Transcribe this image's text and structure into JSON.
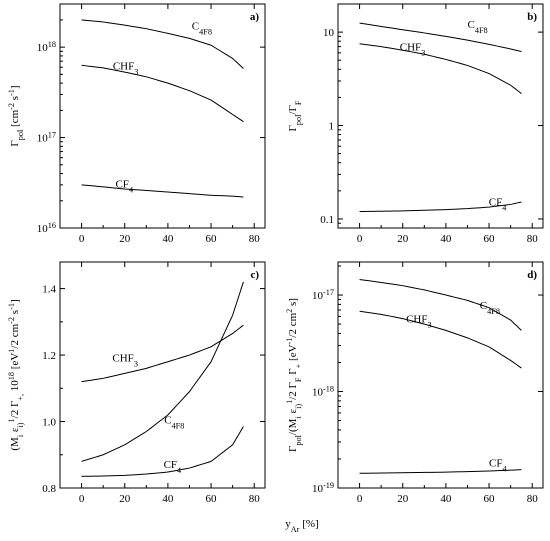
{
  "figure": {
    "xlabel": "y_Ar [%]"
  },
  "chart_data": [
    {
      "id": "a",
      "type": "line",
      "panel_label": "a)",
      "ylabel": "Γ_pol [cm^-2 s^-1]",
      "scale": "log",
      "xlim": [
        -10,
        85
      ],
      "ylim": [
        1e+16,
        3e+18
      ],
      "x_ticks": [
        0,
        20,
        40,
        60,
        80
      ],
      "y_ticks": [
        1e+16,
        1e+17,
        1e+18
      ],
      "y_tick_labels": [
        "10^16",
        "10^17",
        "10^18"
      ],
      "series": [
        {
          "name": "C_4F_8",
          "x": [
            0,
            10,
            20,
            30,
            40,
            50,
            60,
            70,
            75
          ],
          "y": [
            2e+18,
            1.9e+18,
            1.75e+18,
            1.6e+18,
            1.42e+18,
            1.25e+18,
            1.05e+18,
            7.5e+17,
            5.8e+17
          ]
        },
        {
          "name": "CHF_3",
          "x": [
            0,
            10,
            20,
            30,
            40,
            50,
            60,
            70,
            75
          ],
          "y": [
            6.3e+17,
            5.9e+17,
            5.3e+17,
            4.7e+17,
            4e+17,
            3.3e+17,
            2.6e+17,
            1.8e+17,
            1.5e+17
          ]
        },
        {
          "name": "CF_4",
          "x": [
            0,
            10,
            20,
            30,
            40,
            50,
            60,
            70,
            75
          ],
          "y": [
            3e+16,
            2.85e+16,
            2.7e+16,
            2.6e+16,
            2.5e+16,
            2.4e+16,
            2.3e+16,
            2.25e+16,
            2.2e+16
          ]
        }
      ]
    },
    {
      "id": "b",
      "type": "line",
      "panel_label": "b)",
      "ylabel": "Γ_pol/Γ_F",
      "scale": "log",
      "xlim": [
        -10,
        85
      ],
      "ylim": [
        0.08,
        20
      ],
      "x_ticks": [
        0,
        20,
        40,
        60,
        80
      ],
      "y_ticks": [
        0.1,
        1,
        10
      ],
      "y_tick_labels": [
        "0.1",
        "1",
        "10"
      ],
      "series": [
        {
          "name": "C_4F_8",
          "x": [
            0,
            10,
            20,
            30,
            40,
            50,
            60,
            70,
            75
          ],
          "y": [
            12.5,
            11.5,
            10.6,
            9.8,
            9.0,
            8.2,
            7.4,
            6.6,
            6.2
          ]
        },
        {
          "name": "CHF_3",
          "x": [
            0,
            10,
            20,
            30,
            40,
            50,
            60,
            70,
            75
          ],
          "y": [
            7.5,
            7.0,
            6.4,
            5.8,
            5.1,
            4.4,
            3.6,
            2.7,
            2.2
          ]
        },
        {
          "name": "CF_4",
          "x": [
            0,
            10,
            20,
            30,
            40,
            50,
            60,
            70,
            75
          ],
          "y": [
            0.12,
            0.121,
            0.122,
            0.124,
            0.126,
            0.129,
            0.134,
            0.143,
            0.152
          ]
        }
      ]
    },
    {
      "id": "c",
      "type": "line",
      "panel_label": "c)",
      "ylabel": "(M_i ε_i)^1/2 Γ_+, 10^18 [eV^1/2 cm^-2 s^-1]",
      "scale": "linear",
      "xlim": [
        -10,
        85
      ],
      "ylim": [
        0.8,
        1.48
      ],
      "x_ticks": [
        0,
        20,
        40,
        60,
        80
      ],
      "y_ticks": [
        0.8,
        1.0,
        1.2,
        1.4
      ],
      "y_tick_labels": [
        "0.8",
        "1.0",
        "1.2",
        "1.4"
      ],
      "series": [
        {
          "name": "CHF_3",
          "x": [
            0,
            10,
            20,
            30,
            40,
            50,
            60,
            70,
            75
          ],
          "y": [
            1.12,
            1.13,
            1.145,
            1.16,
            1.18,
            1.2,
            1.225,
            1.265,
            1.29
          ]
        },
        {
          "name": "C_4F_8",
          "x": [
            0,
            10,
            20,
            30,
            40,
            50,
            60,
            70,
            75
          ],
          "y": [
            0.88,
            0.9,
            0.93,
            0.97,
            1.02,
            1.09,
            1.18,
            1.32,
            1.42
          ]
        },
        {
          "name": "CF_4",
          "x": [
            0,
            10,
            20,
            30,
            40,
            50,
            60,
            70,
            75
          ],
          "y": [
            0.835,
            0.836,
            0.838,
            0.842,
            0.848,
            0.86,
            0.88,
            0.93,
            0.985
          ]
        }
      ]
    },
    {
      "id": "d",
      "type": "line",
      "panel_label": "d)",
      "ylabel": "Γ_pol/(M_i ε_i)^1/2 Γ_F Γ_+ [eV^-1/2 cm^2 s]",
      "scale": "log",
      "xlim": [
        -10,
        85
      ],
      "ylim": [
        1e-19,
        2.2e-17
      ],
      "x_ticks": [
        0,
        20,
        40,
        60,
        80
      ],
      "y_ticks": [
        1e-19,
        1e-18,
        1e-17
      ],
      "y_tick_labels": [
        "10^-19",
        "10^-18",
        "10^-17"
      ],
      "series": [
        {
          "name": "C_4F_8",
          "x": [
            0,
            10,
            20,
            30,
            40,
            50,
            60,
            70,
            75
          ],
          "y": [
            1.45e-17,
            1.35e-17,
            1.25e-17,
            1.13e-17,
            1e-17,
            8.8e-18,
            7.4e-18,
            5.5e-18,
            4.3e-18
          ]
        },
        {
          "name": "CHF_3",
          "x": [
            0,
            10,
            20,
            30,
            40,
            50,
            60,
            70,
            75
          ],
          "y": [
            6.8e-18,
            6.3e-18,
            5.7e-18,
            5e-18,
            4.3e-18,
            3.6e-18,
            2.9e-18,
            2.1e-18,
            1.75e-18
          ]
        },
        {
          "name": "CF_4",
          "x": [
            0,
            10,
            20,
            30,
            40,
            50,
            60,
            70,
            75
          ],
          "y": [
            1.42e-19,
            1.43e-19,
            1.44e-19,
            1.45e-19,
            1.46e-19,
            1.48e-19,
            1.5e-19,
            1.53e-19,
            1.55e-19
          ]
        }
      ]
    }
  ]
}
